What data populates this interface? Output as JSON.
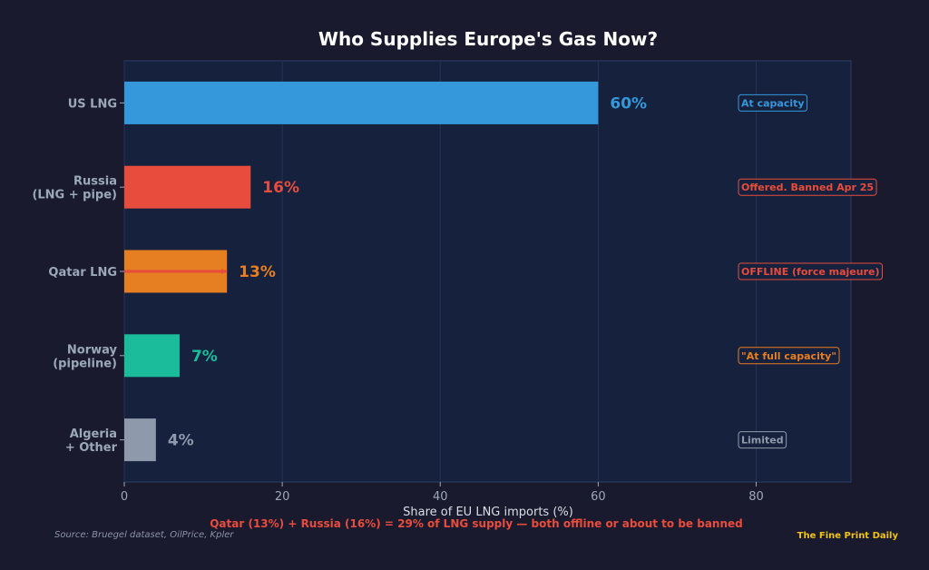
{
  "chart_data": {
    "type": "bar",
    "orientation": "horizontal",
    "title": "Who Supplies Europe's Gas Now?",
    "xlabel": "Share of EU LNG imports (%)",
    "ylabel": "",
    "xlim": [
      0,
      92
    ],
    "xticks": [
      0,
      20,
      40,
      60,
      80
    ],
    "grid": "vertical",
    "categories": [
      [
        "US LNG"
      ],
      [
        "Russia",
        "(LNG + pipe)"
      ],
      [
        "Qatar LNG"
      ],
      [
        "Norway",
        "(pipeline)"
      ],
      [
        "Algeria",
        "+ Other"
      ]
    ],
    "values": [
      60,
      16,
      13,
      7,
      4
    ],
    "value_labels": [
      "60%",
      "16%",
      "13%",
      "7%",
      "4%"
    ],
    "colors": [
      "#3498db",
      "#e74c3c",
      "#e67e22",
      "#1abc9c",
      "#8e9aab"
    ],
    "status_badges": [
      {
        "text": "At capacity",
        "color": "#3498db"
      },
      {
        "text": "Offered. Banned Apr 25",
        "color": "#e74c3c"
      },
      {
        "text": "OFFLINE (force majeure)",
        "color": "#e74c3c"
      },
      {
        "text": "\"At full capacity\"",
        "color": "#e67e22"
      },
      {
        "text": "Limited",
        "color": "#8e9aab"
      }
    ],
    "strikethrough_category_index": 2,
    "strikethrough_color": "#e74c3c",
    "footnote": "Qatar (13%) + Russia (16%) = 29% of LNG supply — both offline or about to be banned"
  },
  "source": "Source: Bruegel dataset, OilPrice, Kpler",
  "brand": "The Fine Print Daily",
  "colors": {
    "page_background": "#1a1a2e",
    "plot_background": "#16213e",
    "plot_border": "#2c3e66",
    "grid": "#263355"
  }
}
